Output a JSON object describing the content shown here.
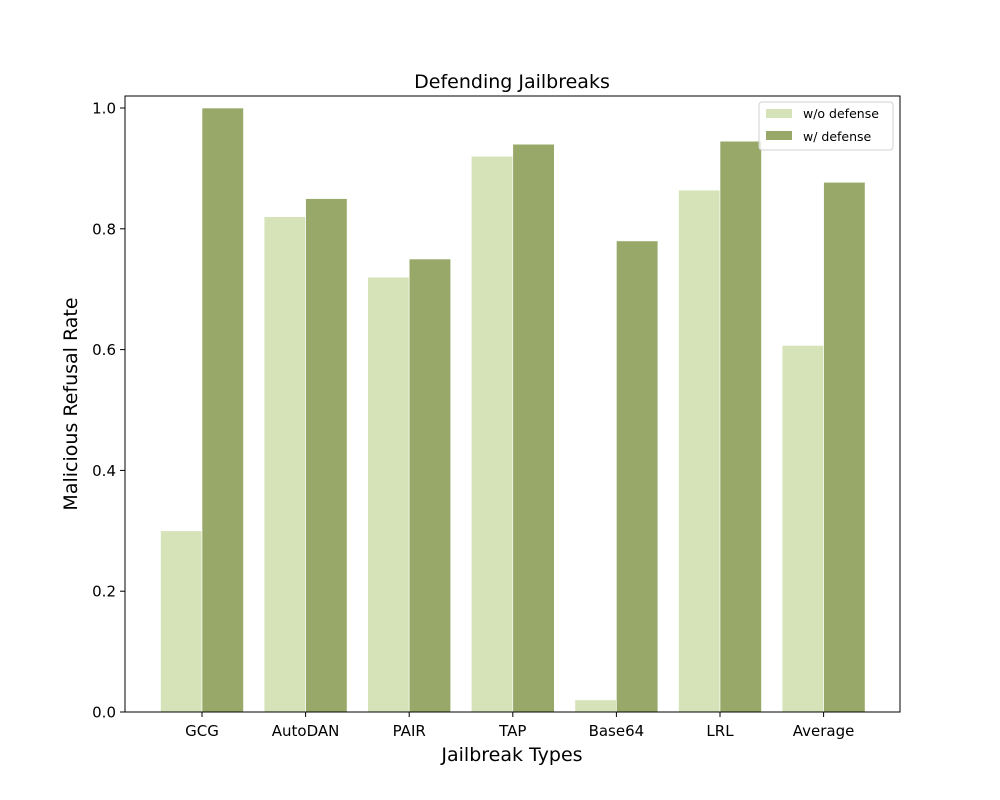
{
  "chart_data": {
    "type": "bar",
    "title": "Defending Jailbreaks",
    "xlabel": "Jailbreak Types",
    "ylabel": "Malicious Refusal Rate",
    "categories": [
      "GCG",
      "AutoDAN",
      "PAIR",
      "TAP",
      "Base64",
      "LRL",
      "Average"
    ],
    "series": [
      {
        "name": "w/o defense",
        "color": "#d6e3b8",
        "values": [
          0.3,
          0.82,
          0.72,
          0.92,
          0.02,
          0.864,
          0.607
        ]
      },
      {
        "name": "w/ defense",
        "color": "#98a869",
        "values": [
          1.0,
          0.85,
          0.75,
          0.94,
          0.78,
          0.945,
          0.877
        ]
      }
    ],
    "ylim": [
      0,
      1.02
    ],
    "yticks": [
      0.0,
      0.2,
      0.4,
      0.6,
      0.8,
      1.0
    ],
    "ytick_labels": [
      "0.0",
      "0.2",
      "0.4",
      "0.6",
      "0.8",
      "1.0"
    ],
    "grid": false,
    "legend_position": "top-right"
  }
}
